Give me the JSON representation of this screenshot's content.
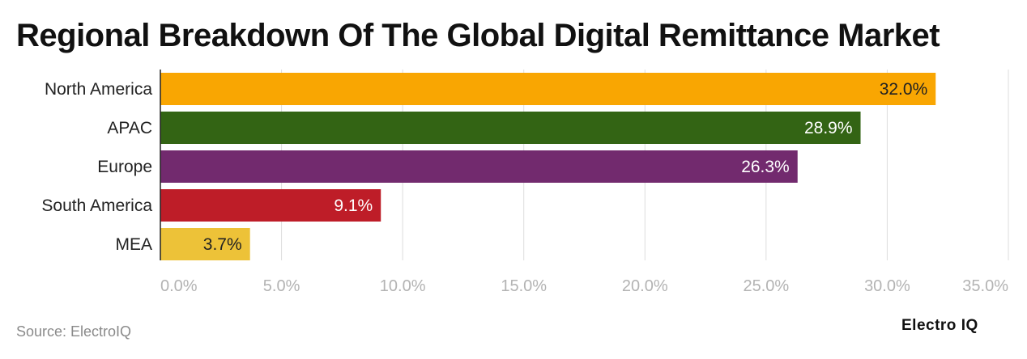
{
  "chart_data": {
    "type": "bar",
    "orientation": "horizontal",
    "title": "Regional Breakdown Of The Global Digital Remittance Market",
    "categories": [
      "North America",
      "APAC",
      "Europe",
      "South America",
      "MEA"
    ],
    "values": [
      32.0,
      28.9,
      26.3,
      9.1,
      3.7
    ],
    "value_labels": [
      "32.0%",
      "28.9%",
      "26.3%",
      "9.1%",
      "3.7%"
    ],
    "colors": [
      "#F9A602",
      "#336414",
      "#722A6E",
      "#BE1D28",
      "#EDC238"
    ],
    "label_colors": [
      "#222222",
      "#ffffff",
      "#ffffff",
      "#ffffff",
      "#222222"
    ],
    "xlim": [
      0,
      35
    ],
    "xticks": [
      0,
      5,
      10,
      15,
      20,
      25,
      30,
      35
    ],
    "xtick_labels": [
      "0.0%",
      "5.0%",
      "10.0%",
      "15.0%",
      "20.0%",
      "25.0%",
      "30.0%",
      "35.0%"
    ],
    "xlabel": "",
    "ylabel": "",
    "grid": true
  },
  "footer": {
    "source": "Source: ElectroIQ",
    "brand": "Electro IQ"
  }
}
